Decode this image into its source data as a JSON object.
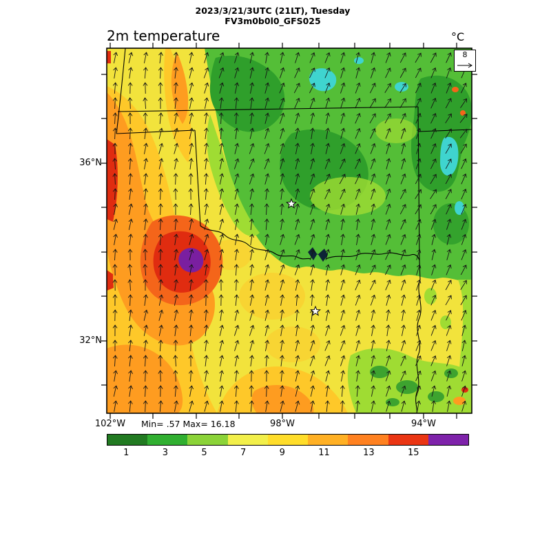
{
  "header": {
    "title_line1": "2023/3/21/3UTC (21LT), Tuesday",
    "title_line2": "FV3m0b0l0_GFS025",
    "plot_title": "2m temperature",
    "units": "°C"
  },
  "ref_vector": {
    "value": "8"
  },
  "axes": {
    "lat_labels": [
      "36°N",
      "32°N"
    ],
    "lon_labels": [
      "102°W",
      "98°W",
      "94°W"
    ]
  },
  "stats": {
    "min_max": "Min= .57 Max= 16.18"
  },
  "colorbar": {
    "tick_labels": [
      "1",
      "3",
      "5",
      "7",
      "9",
      "11",
      "13",
      "15"
    ],
    "colors": [
      "#217a21",
      "#30af30",
      "#8bd338",
      "#f2ef4a",
      "#ffdd2a",
      "#ffb024",
      "#ff8120",
      "#ea3513",
      "#7e22aa"
    ]
  }
}
